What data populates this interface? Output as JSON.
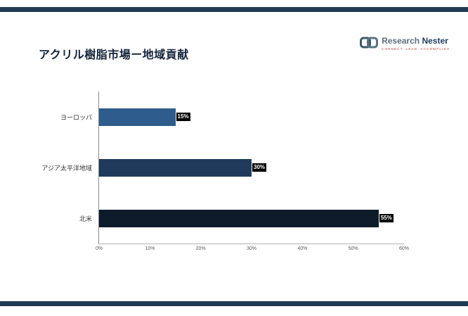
{
  "page": {
    "title": "アクリル樹脂市場ー地域貢献"
  },
  "logo": {
    "name_first": "Research",
    "name_second": "Nester",
    "tagline": "Connect. Lead. Accomplish",
    "icon": "chain-link-icon",
    "icon_color": "#3d5a68",
    "name_first_color": "#5b6e7f",
    "name_second_color": "#1f3a5f",
    "tagline_color": "#c0392b"
  },
  "colors": {
    "accent_bar": "#203a54",
    "bars": [
      "#2e5c8c",
      "#203a5c",
      "#0e1b2b"
    ],
    "axis": "#8c8c8c",
    "badge_bg": "#000000",
    "badge_text": "#ffffff"
  },
  "chart_data": {
    "type": "bar",
    "orientation": "horizontal",
    "title": "アクリル樹脂市場ー地域貢献",
    "categories": [
      "ヨーロッパ",
      "アジア太平洋地域",
      "北米"
    ],
    "values": [
      15,
      30,
      55
    ],
    "value_labels": [
      "15%",
      "30%",
      "55%"
    ],
    "xlim": [
      0,
      60
    ],
    "x_ticks": [
      "0%",
      "10%",
      "20%",
      "30%",
      "40%",
      "50%",
      "60%"
    ],
    "xlabel": "",
    "ylabel": "",
    "grid": false,
    "legend": false
  }
}
